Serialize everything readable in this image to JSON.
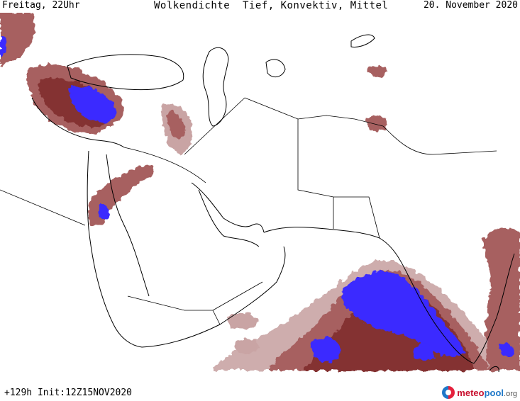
{
  "header": {
    "left": "Freitag, 22Uhr",
    "title": "Wolkendichte  Tief, Konvektiv, Mittel",
    "right": "20. November 2020"
  },
  "footer": {
    "forecast": "+129h Init:12Z15NOV2020"
  },
  "logo": {
    "part1": "meteo",
    "part2": "pool",
    "part3": ".org"
  },
  "colors": {
    "cloud_light": "#c9a4a4",
    "cloud_medium": "#a76060",
    "cloud_dense": "#7e2a2a",
    "convective_high": "#3a2cff",
    "coastline": "#000000"
  }
}
